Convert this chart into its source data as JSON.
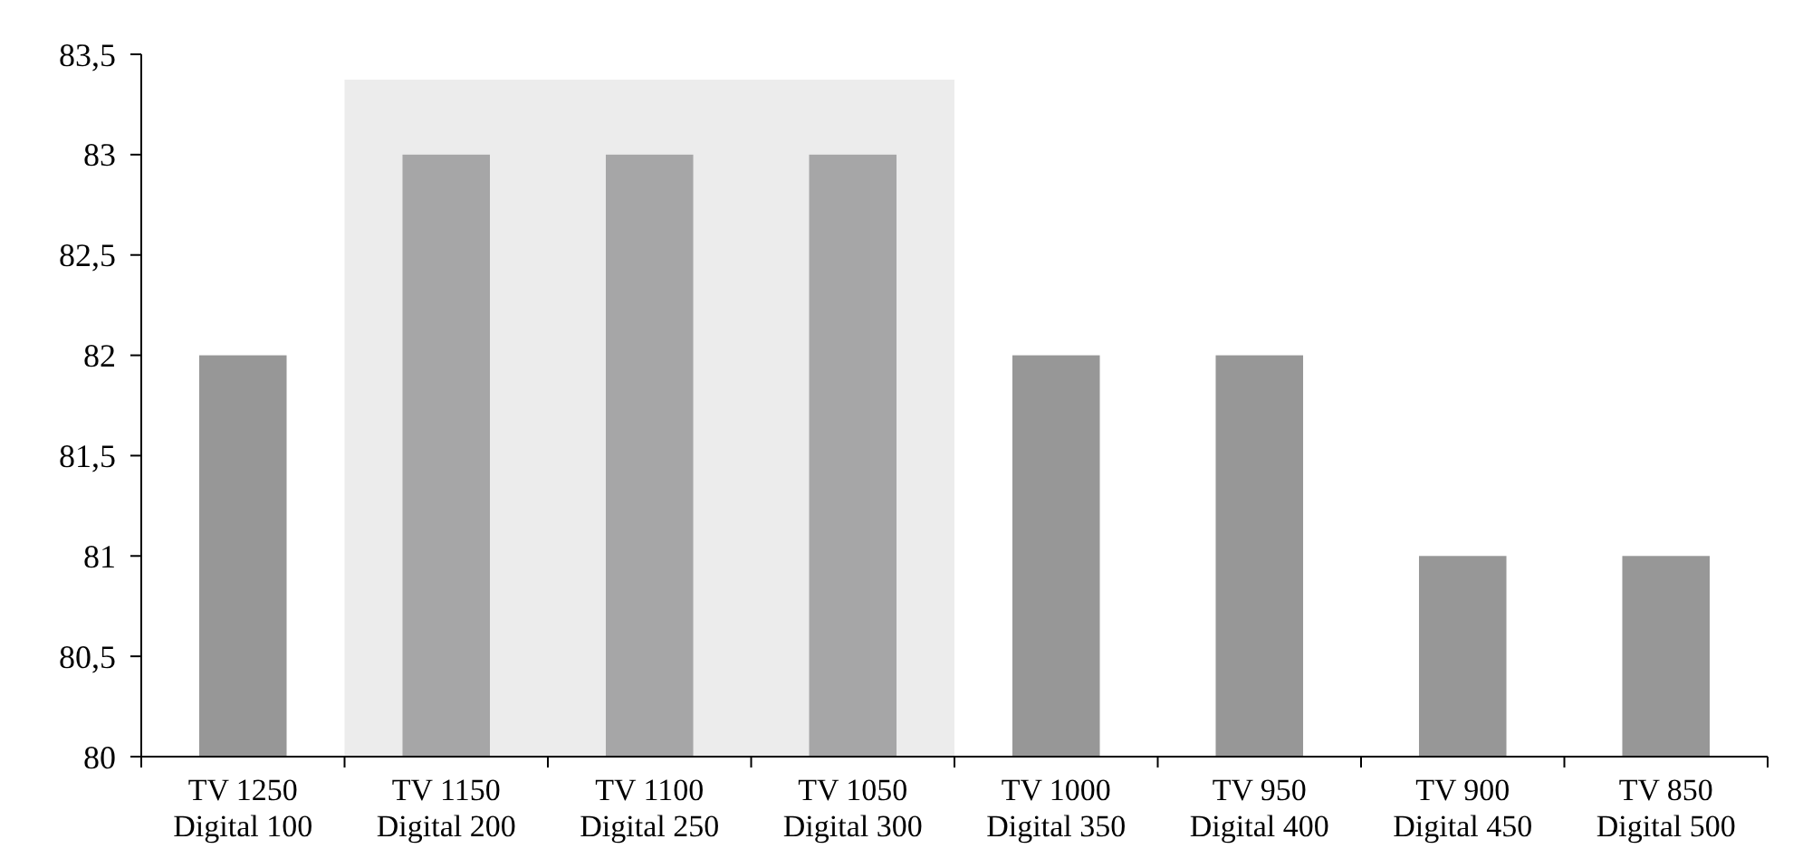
{
  "chart_data": {
    "type": "bar",
    "categories": [
      "TV 1250 Digital 100",
      "TV 1150 Digital 200",
      "TV 1100 Digital 250",
      "TV 1050 Digital 300",
      "TV 1000 Digital 350",
      "TV 950 Digital 400",
      "TV 900 Digital 450",
      "TV 850 Digital 500"
    ],
    "values": [
      82,
      83,
      83,
      83,
      82,
      82,
      81,
      81
    ],
    "colors": [
      "#979797",
      "#a6a6a7",
      "#a6a6a7",
      "#a6a6a7",
      "#979797",
      "#979797",
      "#979797",
      "#979797"
    ],
    "ylim": [
      80,
      83.5
    ],
    "yticks": [
      80,
      {
        "value": 80.5,
        "label": "80,5"
      },
      81,
      {
        "value": 81.5,
        "label": "81,5"
      },
      82,
      {
        "value": 82.5,
        "label": "82,5"
      },
      83,
      {
        "value": 83.5,
        "label": "83,5"
      }
    ],
    "bands": [
      {
        "axis": "x",
        "from": "TV 1150 Digital 200",
        "to": "TV 1050 Digital 300",
        "color": "#ececec"
      }
    ],
    "grid": false
  }
}
